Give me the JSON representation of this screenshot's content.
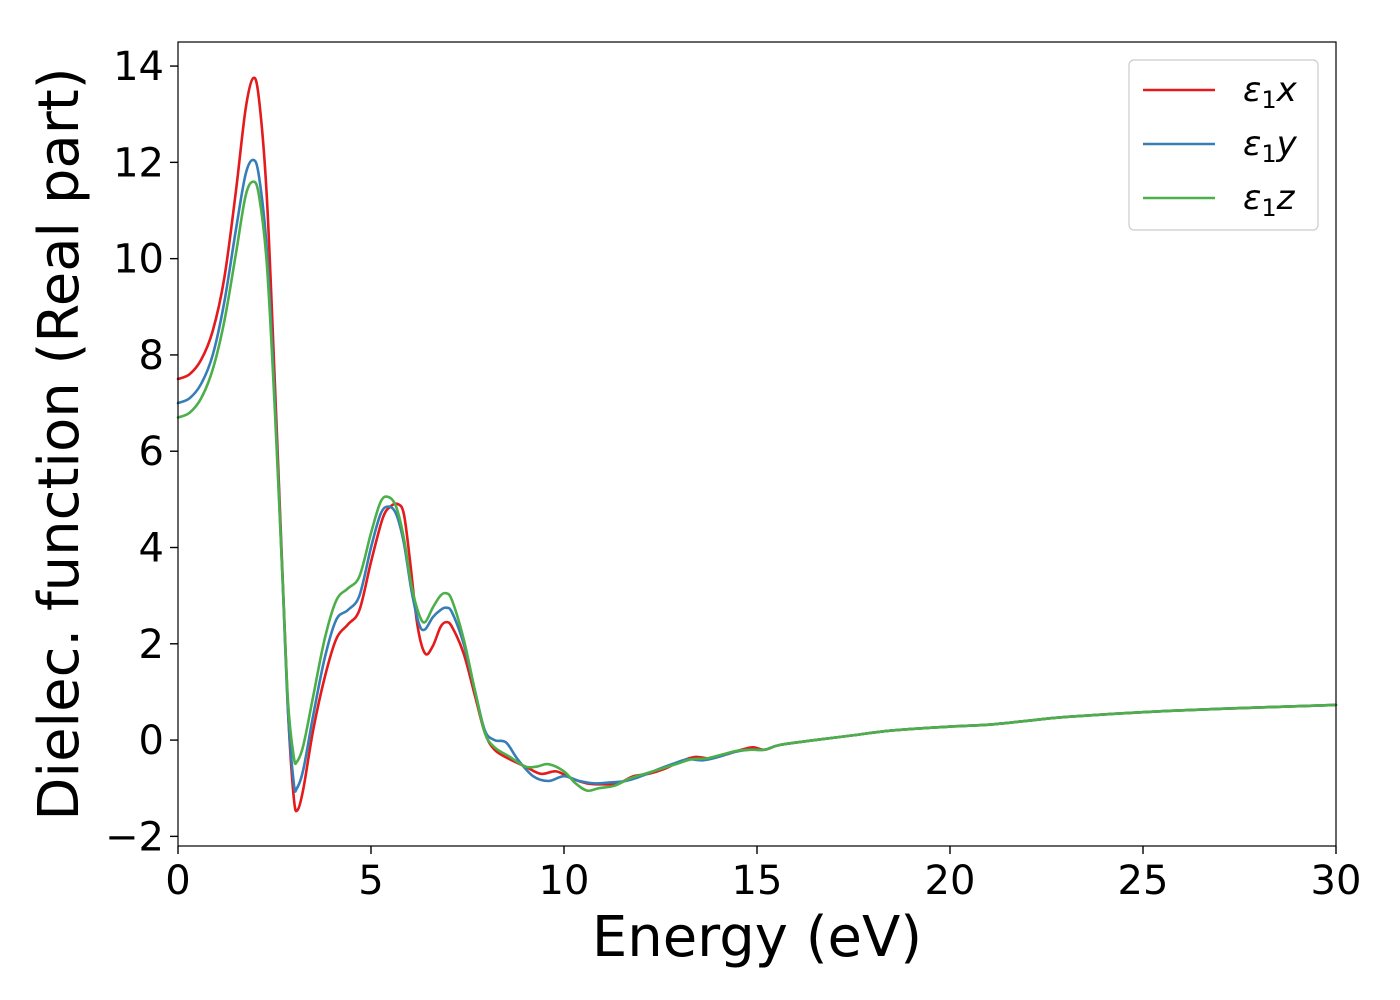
{
  "chart_data": {
    "type": "line",
    "title": "",
    "xlabel": "Energy (eV)",
    "ylabel": "Dielec. function (Real part)",
    "xlim": [
      0,
      30
    ],
    "ylim": [
      -2.2,
      14.5
    ],
    "xticks": [
      0,
      5,
      10,
      15,
      20,
      25,
      30
    ],
    "xtick_labels": [
      "0",
      "5",
      "10",
      "15",
      "20",
      "25",
      "30"
    ],
    "yticks": [
      -2,
      0,
      2,
      4,
      6,
      8,
      10,
      12,
      14
    ],
    "ytick_labels": [
      "−2",
      "0",
      "2",
      "4",
      "6",
      "8",
      "10",
      "12",
      "14"
    ],
    "grid": false,
    "legend_position": "top-right",
    "series": [
      {
        "name": "ε₁x",
        "legend_main": "ε",
        "legend_sub": "1",
        "legend_suffix": "x",
        "color": "#e41a1c",
        "points": [
          [
            0,
            7.5
          ],
          [
            0.3,
            7.6
          ],
          [
            0.6,
            7.9
          ],
          [
            0.9,
            8.5
          ],
          [
            1.2,
            9.6
          ],
          [
            1.5,
            11.4
          ],
          [
            1.75,
            13.1
          ],
          [
            1.95,
            13.75
          ],
          [
            2.1,
            13.3
          ],
          [
            2.3,
            11.3
          ],
          [
            2.5,
            7.6
          ],
          [
            2.7,
            3.6
          ],
          [
            2.85,
            0.6
          ],
          [
            3.0,
            -1.2
          ],
          [
            3.1,
            -1.45
          ],
          [
            3.25,
            -1.0
          ],
          [
            3.5,
            0.2
          ],
          [
            3.8,
            1.3
          ],
          [
            4.1,
            2.1
          ],
          [
            4.4,
            2.4
          ],
          [
            4.7,
            2.7
          ],
          [
            5.0,
            3.7
          ],
          [
            5.3,
            4.6
          ],
          [
            5.5,
            4.85
          ],
          [
            5.7,
            4.9
          ],
          [
            5.85,
            4.7
          ],
          [
            6.0,
            3.8
          ],
          [
            6.2,
            2.4
          ],
          [
            6.4,
            1.8
          ],
          [
            6.6,
            1.95
          ],
          [
            6.8,
            2.35
          ],
          [
            6.95,
            2.45
          ],
          [
            7.1,
            2.35
          ],
          [
            7.4,
            1.8
          ],
          [
            7.7,
            0.9
          ],
          [
            7.95,
            0.15
          ],
          [
            8.2,
            -0.2
          ],
          [
            8.6,
            -0.4
          ],
          [
            9.0,
            -0.55
          ],
          [
            9.4,
            -0.7
          ],
          [
            9.8,
            -0.65
          ],
          [
            10.2,
            -0.8
          ],
          [
            10.6,
            -0.9
          ],
          [
            11.0,
            -0.92
          ],
          [
            11.4,
            -0.9
          ],
          [
            11.8,
            -0.75
          ],
          [
            12.2,
            -0.7
          ],
          [
            12.6,
            -0.6
          ],
          [
            13.0,
            -0.45
          ],
          [
            13.4,
            -0.35
          ],
          [
            13.8,
            -0.38
          ],
          [
            14.2,
            -0.3
          ],
          [
            14.6,
            -0.2
          ],
          [
            14.9,
            -0.15
          ],
          [
            15.2,
            -0.2
          ],
          [
            15.6,
            -0.1
          ],
          [
            16.5,
            0.0
          ],
          [
            17.5,
            0.1
          ],
          [
            18.5,
            0.2
          ],
          [
            20,
            0.28
          ],
          [
            21,
            0.32
          ],
          [
            22,
            0.4
          ],
          [
            23,
            0.48
          ],
          [
            25,
            0.58
          ],
          [
            27,
            0.65
          ],
          [
            30,
            0.73
          ]
        ]
      },
      {
        "name": "ε₁y",
        "legend_main": "ε",
        "legend_sub": "1",
        "legend_suffix": "y",
        "color": "#377eb8",
        "points": [
          [
            0,
            7.0
          ],
          [
            0.3,
            7.1
          ],
          [
            0.6,
            7.4
          ],
          [
            0.9,
            8.0
          ],
          [
            1.2,
            9.1
          ],
          [
            1.5,
            10.6
          ],
          [
            1.75,
            11.75
          ],
          [
            1.95,
            12.05
          ],
          [
            2.1,
            11.7
          ],
          [
            2.3,
            10.2
          ],
          [
            2.5,
            7.2
          ],
          [
            2.7,
            3.5
          ],
          [
            2.85,
            0.6
          ],
          [
            3.0,
            -0.9
          ],
          [
            3.08,
            -1.0
          ],
          [
            3.25,
            -0.6
          ],
          [
            3.5,
            0.5
          ],
          [
            3.8,
            1.7
          ],
          [
            4.1,
            2.5
          ],
          [
            4.4,
            2.7
          ],
          [
            4.7,
            3.0
          ],
          [
            5.0,
            4.0
          ],
          [
            5.25,
            4.7
          ],
          [
            5.45,
            4.85
          ],
          [
            5.65,
            4.7
          ],
          [
            5.85,
            4.1
          ],
          [
            6.05,
            3.1
          ],
          [
            6.25,
            2.4
          ],
          [
            6.4,
            2.3
          ],
          [
            6.6,
            2.55
          ],
          [
            6.8,
            2.7
          ],
          [
            6.95,
            2.75
          ],
          [
            7.1,
            2.65
          ],
          [
            7.4,
            2.0
          ],
          [
            7.7,
            1.0
          ],
          [
            7.95,
            0.2
          ],
          [
            8.2,
            0.0
          ],
          [
            8.5,
            -0.05
          ],
          [
            8.8,
            -0.4
          ],
          [
            9.2,
            -0.75
          ],
          [
            9.6,
            -0.85
          ],
          [
            10.0,
            -0.75
          ],
          [
            10.4,
            -0.85
          ],
          [
            10.8,
            -0.9
          ],
          [
            11.2,
            -0.88
          ],
          [
            11.6,
            -0.85
          ],
          [
            12.0,
            -0.75
          ],
          [
            12.4,
            -0.62
          ],
          [
            12.8,
            -0.5
          ],
          [
            13.2,
            -0.4
          ],
          [
            13.6,
            -0.42
          ],
          [
            14.0,
            -0.35
          ],
          [
            14.4,
            -0.25
          ],
          [
            14.8,
            -0.2
          ],
          [
            15.2,
            -0.2
          ],
          [
            15.6,
            -0.1
          ],
          [
            16.5,
            0.0
          ],
          [
            17.5,
            0.1
          ],
          [
            18.5,
            0.2
          ],
          [
            20,
            0.28
          ],
          [
            21,
            0.32
          ],
          [
            22,
            0.4
          ],
          [
            23,
            0.48
          ],
          [
            25,
            0.58
          ],
          [
            27,
            0.65
          ],
          [
            30,
            0.73
          ]
        ]
      },
      {
        "name": "ε₁z",
        "legend_main": "ε",
        "legend_sub": "1",
        "legend_suffix": "z",
        "color": "#4daf4a",
        "points": [
          [
            0,
            6.7
          ],
          [
            0.3,
            6.8
          ],
          [
            0.6,
            7.1
          ],
          [
            0.9,
            7.7
          ],
          [
            1.2,
            8.7
          ],
          [
            1.5,
            10.1
          ],
          [
            1.75,
            11.3
          ],
          [
            1.95,
            11.6
          ],
          [
            2.1,
            11.3
          ],
          [
            2.3,
            9.9
          ],
          [
            2.5,
            7.0
          ],
          [
            2.7,
            3.5
          ],
          [
            2.85,
            0.8
          ],
          [
            3.0,
            -0.35
          ],
          [
            3.08,
            -0.45
          ],
          [
            3.25,
            -0.1
          ],
          [
            3.5,
            0.9
          ],
          [
            3.8,
            2.1
          ],
          [
            4.1,
            2.9
          ],
          [
            4.4,
            3.15
          ],
          [
            4.7,
            3.4
          ],
          [
            5.0,
            4.3
          ],
          [
            5.25,
            4.95
          ],
          [
            5.45,
            5.05
          ],
          [
            5.65,
            4.85
          ],
          [
            5.85,
            4.2
          ],
          [
            6.05,
            3.2
          ],
          [
            6.25,
            2.6
          ],
          [
            6.4,
            2.45
          ],
          [
            6.6,
            2.75
          ],
          [
            6.8,
            3.0
          ],
          [
            6.95,
            3.05
          ],
          [
            7.1,
            2.9
          ],
          [
            7.4,
            2.1
          ],
          [
            7.7,
            1.0
          ],
          [
            7.95,
            0.15
          ],
          [
            8.2,
            -0.15
          ],
          [
            8.6,
            -0.35
          ],
          [
            9.0,
            -0.55
          ],
          [
            9.3,
            -0.55
          ],
          [
            9.6,
            -0.5
          ],
          [
            10.0,
            -0.65
          ],
          [
            10.3,
            -0.9
          ],
          [
            10.6,
            -1.05
          ],
          [
            10.9,
            -1.0
          ],
          [
            11.3,
            -0.95
          ],
          [
            11.7,
            -0.8
          ],
          [
            12.1,
            -0.7
          ],
          [
            12.5,
            -0.6
          ],
          [
            12.9,
            -0.5
          ],
          [
            13.3,
            -0.4
          ],
          [
            13.7,
            -0.38
          ],
          [
            14.1,
            -0.3
          ],
          [
            14.5,
            -0.22
          ],
          [
            14.9,
            -0.2
          ],
          [
            15.2,
            -0.2
          ],
          [
            15.6,
            -0.1
          ],
          [
            16.5,
            0.0
          ],
          [
            17.5,
            0.1
          ],
          [
            18.5,
            0.2
          ],
          [
            20,
            0.28
          ],
          [
            21,
            0.32
          ],
          [
            22,
            0.4
          ],
          [
            23,
            0.48
          ],
          [
            25,
            0.58
          ],
          [
            27,
            0.65
          ],
          [
            30,
            0.73
          ]
        ]
      }
    ]
  }
}
